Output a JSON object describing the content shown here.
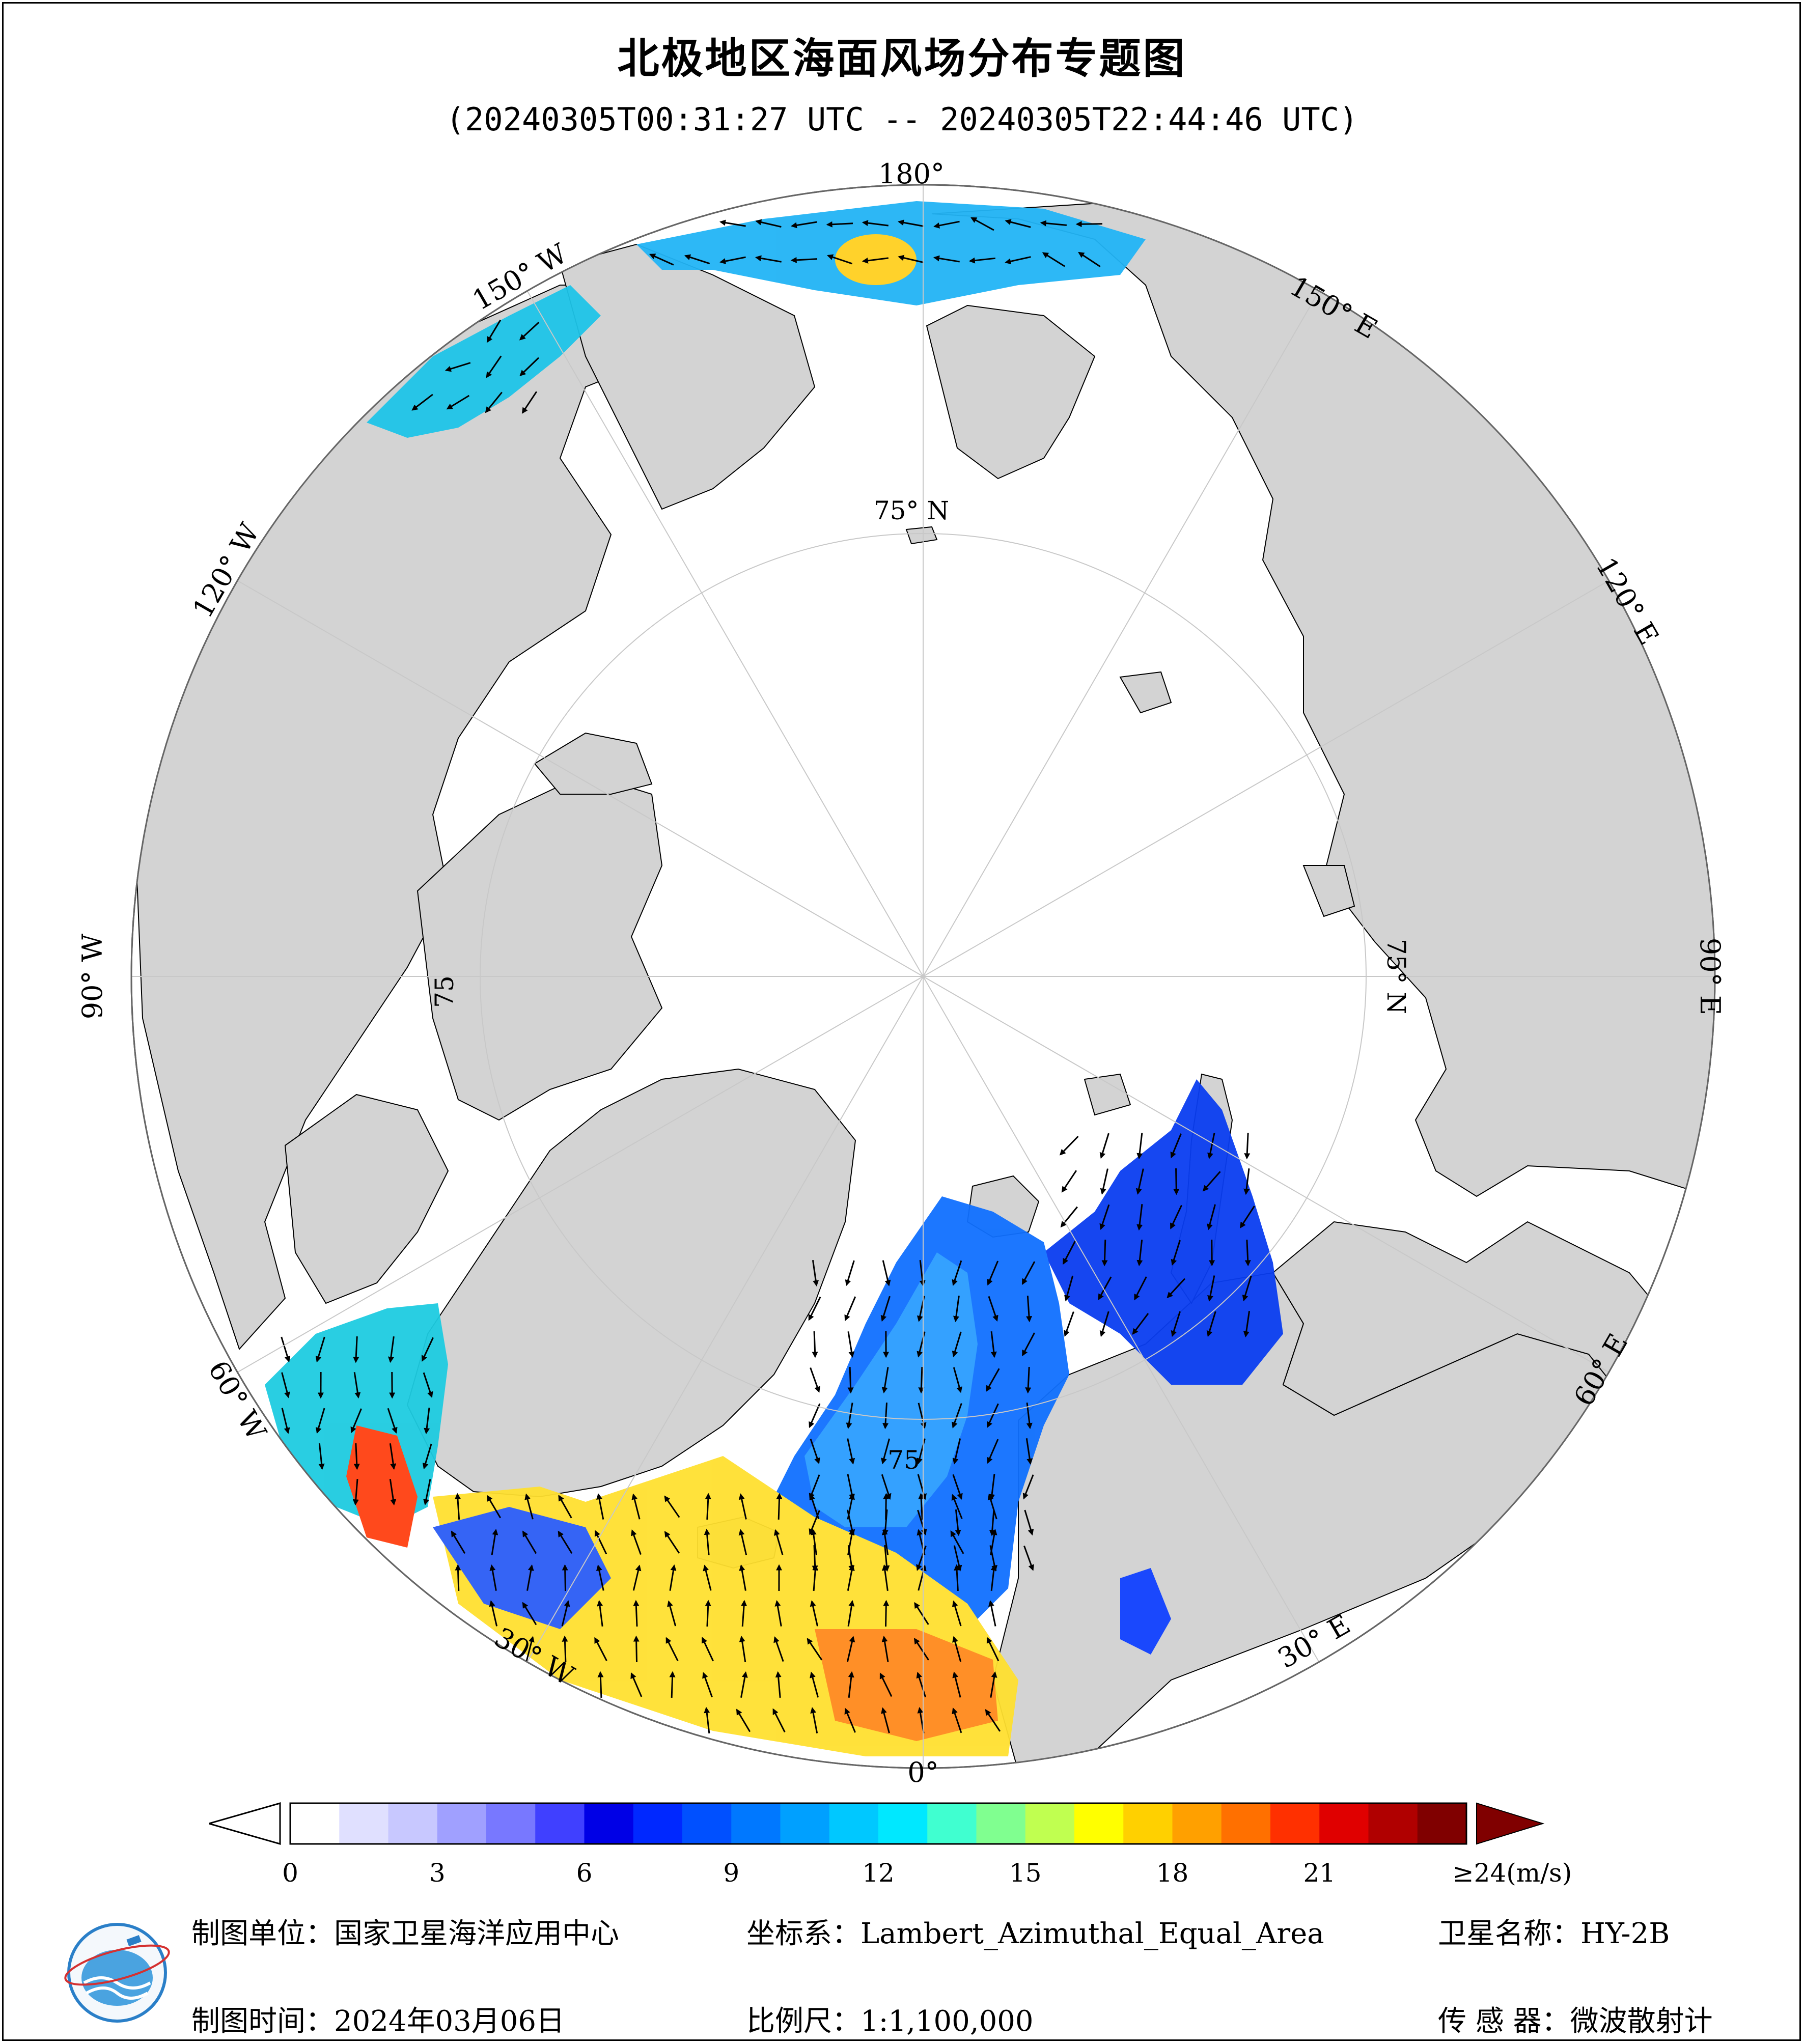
{
  "title": "北极地区海面风场分布专题图",
  "subtitle": "(20240305T00:31:27 UTC -- 20240305T22:44:46 UTC)",
  "longitude_labels": {
    "lon_180": "180°",
    "lon_150w": "150° W",
    "lon_150e": "150° E",
    "lon_120w": "120° W",
    "lon_120e": "120° E",
    "lon_90w": "90° W",
    "lon_90e": "90° E",
    "lon_60w": "60° W",
    "lon_60e": "60° E",
    "lon_30w": "30° W",
    "lon_30e": "30° E",
    "lon_0": "0°"
  },
  "latitude_labels": {
    "lat_top": "75° N",
    "lat_right": "75° N",
    "lat_left": "75",
    "lat_bottom": "75"
  },
  "colorbar": {
    "ticks": [
      "0",
      "3",
      "6",
      "9",
      "12",
      "15",
      "18",
      "21",
      "≥24(m/s)"
    ],
    "tick_values": [
      0,
      3,
      6,
      9,
      12,
      15,
      18,
      21,
      24
    ],
    "min": 0,
    "max": 24,
    "colors": [
      "#ffffff",
      "#e0e0ff",
      "#c8c8ff",
      "#a0a0ff",
      "#7878ff",
      "#4040ff",
      "#0000e6",
      "#0028ff",
      "#0050ff",
      "#0078ff",
      "#00a0ff",
      "#00c8ff",
      "#00e8ff",
      "#40ffd0",
      "#80ff90",
      "#c0ff50",
      "#ffff00",
      "#ffd000",
      "#ffa000",
      "#ff7000",
      "#ff3000",
      "#e00000",
      "#b00000",
      "#800000"
    ],
    "under_color": "#ffffff",
    "over_color": "#800000"
  },
  "info": {
    "producer_label": "制图单位：",
    "producer_value": "国家卫星海洋应用中心",
    "crs_label": "坐标系：",
    "crs_value": "Lambert_Azimuthal_Equal_Area",
    "satellite_label": "卫星名称：",
    "satellite_value": "HY-2B",
    "date_label": "制图时间：",
    "date_value": "2024年03月06日",
    "scale_label": "比例尺：",
    "scale_value": "1:1,100,000",
    "sensor_label": "传 感 器：",
    "sensor_value": "微波散射计"
  },
  "colors": {
    "land": "#d3d3d3",
    "ocean": "#ffffff",
    "grid": "#c8c8c8"
  },
  "icons": {
    "logo": "nsoas-logo-icon"
  }
}
